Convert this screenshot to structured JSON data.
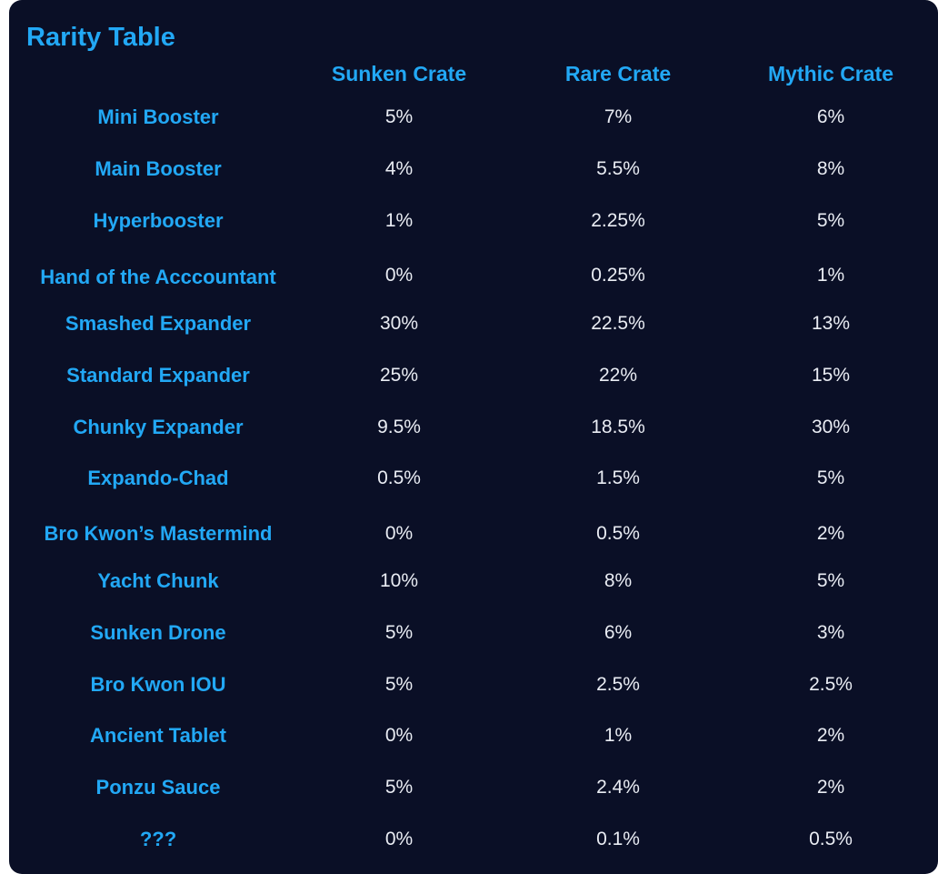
{
  "table": {
    "title": "Rarity Table",
    "columns": [
      "Sunken Crate",
      "Rare Crate",
      "Mythic Crate"
    ],
    "rows": [
      {
        "item": "Mini Booster",
        "values": [
          "5%",
          "7%",
          "6%"
        ]
      },
      {
        "item": "Main Booster",
        "values": [
          "4%",
          "5.5%",
          "8%"
        ]
      },
      {
        "item": "Hyperbooster",
        "values": [
          "1%",
          "2.25%",
          "5%"
        ]
      },
      {
        "item": "Hand of the Acccountant",
        "values": [
          "0%",
          "0.25%",
          "1%"
        ]
      },
      {
        "item": "Smashed Expander",
        "values": [
          "30%",
          "22.5%",
          "13%"
        ]
      },
      {
        "item": "Standard Expander",
        "values": [
          "25%",
          "22%",
          "15%"
        ]
      },
      {
        "item": "Chunky Expander",
        "values": [
          "9.5%",
          "18.5%",
          "30%"
        ]
      },
      {
        "item": "Expando-Chad",
        "values": [
          "0.5%",
          "1.5%",
          "5%"
        ]
      },
      {
        "item": "Bro Kwon’s Mastermind",
        "values": [
          "0%",
          "0.5%",
          "2%"
        ]
      },
      {
        "item": "Yacht Chunk",
        "values": [
          "10%",
          "8%",
          "5%"
        ]
      },
      {
        "item": "Sunken Drone",
        "values": [
          "5%",
          "6%",
          "3%"
        ]
      },
      {
        "item": "Bro Kwon IOU",
        "values": [
          "5%",
          "2.5%",
          "2.5%"
        ]
      },
      {
        "item": "Ancient Tablet",
        "values": [
          "0%",
          "1%",
          "2%"
        ]
      },
      {
        "item": "Ponzu Sauce",
        "values": [
          "5%",
          "2.4%",
          "2%"
        ]
      },
      {
        "item": "???",
        "values": [
          "0%",
          "0.1%",
          "0.5%"
        ]
      }
    ]
  },
  "colors": {
    "background": "#0a0f26",
    "accent": "#22a8f5",
    "value_text": "#e9ecf3"
  }
}
